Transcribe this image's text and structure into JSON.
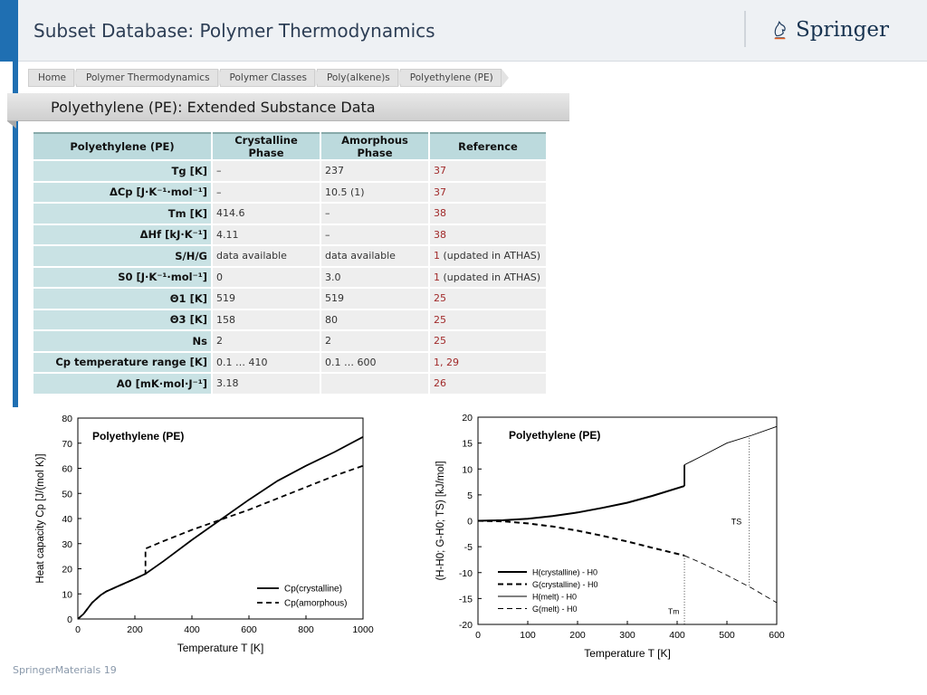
{
  "header": {
    "title": "Subset Database: Polymer Thermodynamics",
    "logo_text": "Springer",
    "logo_icon": "springer-horse-icon"
  },
  "breadcrumb": [
    "Home",
    "Polymer Thermodynamics",
    "Polymer Classes",
    "Poly(alkene)s",
    "Polyethylene (PE)"
  ],
  "panel_title": "Polyethylene (PE): Extended Substance Data",
  "table": {
    "headers": [
      "Polyethylene (PE)",
      "Crystalline Phase",
      "Amorphous Phase",
      "Reference"
    ],
    "rows": [
      {
        "label": "Tg [K]",
        "crystalline": "–",
        "amorphous": "237",
        "ref": "37",
        "ref_note": ""
      },
      {
        "label": "ΔCp [J·K⁻¹·mol⁻¹]",
        "crystalline": "–",
        "amorphous": "10.5 (1)",
        "ref": "37",
        "ref_note": ""
      },
      {
        "label": "Tm [K]",
        "crystalline": "414.6",
        "amorphous": "–",
        "ref": "38",
        "ref_note": ""
      },
      {
        "label": "ΔHf [kJ·K⁻¹]",
        "crystalline": "4.11",
        "amorphous": "–",
        "ref": "38",
        "ref_note": ""
      },
      {
        "label": "S/H/G",
        "crystalline": "data available",
        "amorphous": "data available",
        "ref": "1",
        "ref_note": " (updated in ATHAS)"
      },
      {
        "label": "S0 [J·K⁻¹·mol⁻¹]",
        "crystalline": "0",
        "amorphous": "3.0",
        "ref": "1",
        "ref_note": " (updated in ATHAS)"
      },
      {
        "label": "Θ1 [K]",
        "crystalline": "519",
        "amorphous": "519",
        "ref": "25",
        "ref_note": ""
      },
      {
        "label": "Θ3 [K]",
        "crystalline": "158",
        "amorphous": "80",
        "ref": "25",
        "ref_note": ""
      },
      {
        "label": "Ns",
        "crystalline": "2",
        "amorphous": "2",
        "ref": "25",
        "ref_note": ""
      },
      {
        "label": "Cp temperature range [K]",
        "crystalline": "0.1 … 410",
        "amorphous": "0.1 … 600",
        "ref": "1, 29",
        "ref_note": ""
      },
      {
        "label": "A0 [mK·mol·J⁻¹]",
        "crystalline": "3.18",
        "amorphous": "",
        "ref": "26",
        "ref_note": ""
      }
    ]
  },
  "chart_data": [
    {
      "type": "line",
      "title": "Polyethylene (PE)",
      "xlabel": "Temperature T [K]",
      "ylabel": "Heat capacity Cp [J/(mol K)]",
      "xlim": [
        0,
        1000
      ],
      "ylim": [
        0,
        80
      ],
      "xticks": [
        "0",
        "200",
        "400",
        "600",
        "800",
        "1000"
      ],
      "yticks": [
        "0",
        "10",
        "20",
        "30",
        "40",
        "50",
        "60",
        "70",
        "80"
      ],
      "legend_position": "bottom-right",
      "series": [
        {
          "name": "Cp(crystalline)",
          "style": "solid",
          "x": [
            0,
            20,
            50,
            80,
            100,
            150,
            200,
            237,
            300,
            400,
            500,
            600,
            700,
            800,
            900,
            1000
          ],
          "y": [
            0,
            2,
            6.5,
            9.5,
            11,
            13.5,
            16,
            18,
            23,
            31.5,
            39.5,
            47.5,
            55,
            61,
            66.5,
            72.5
          ]
        },
        {
          "name": "Cp(amorphous)",
          "style": "dashed",
          "x": [
            0,
            20,
            50,
            80,
            100,
            150,
            200,
            237,
            237,
            300,
            400,
            500,
            600,
            700,
            800,
            900,
            1000
          ],
          "y": [
            0,
            2,
            6.5,
            9.5,
            11,
            13.5,
            16,
            18,
            28,
            31,
            35.5,
            39.5,
            43.5,
            48,
            52.5,
            57,
            61
          ]
        }
      ]
    },
    {
      "type": "line",
      "title": "Polyethylene (PE)",
      "xlabel": "Temperature T [K]",
      "ylabel": "(H-H0; G-H0; TS) [kJ/mol]",
      "xlim": [
        0,
        600
      ],
      "ylim": [
        -20,
        20
      ],
      "xticks": [
        "0",
        "100",
        "200",
        "300",
        "400",
        "500",
        "600"
      ],
      "yticks": [
        "-20",
        "-15",
        "-10",
        "-5",
        "0",
        "5",
        "10",
        "15",
        "20"
      ],
      "legend_position": "bottom-left",
      "annotations": [
        "TS",
        "Tm"
      ],
      "series": [
        {
          "name": "H(crystalline) - H0",
          "style": "solid-thick",
          "x": [
            0,
            50,
            100,
            150,
            200,
            250,
            300,
            350,
            414.6
          ],
          "y": [
            0,
            0.1,
            0.4,
            0.9,
            1.6,
            2.5,
            3.5,
            4.8,
            6.7
          ]
        },
        {
          "name": "G(crystalline) - H0",
          "style": "dashed-thick",
          "x": [
            0,
            50,
            100,
            150,
            200,
            250,
            300,
            350,
            414.6
          ],
          "y": [
            0,
            -0.1,
            -0.5,
            -1.1,
            -1.9,
            -2.9,
            -4.0,
            -5.2,
            -6.7
          ]
        },
        {
          "name": "H(melt) - H0",
          "style": "solid-thin",
          "x": [
            414.6,
            450,
            500,
            550,
            600
          ],
          "y": [
            10.8,
            12.5,
            15,
            16.5,
            18.2
          ]
        },
        {
          "name": "G(melt) - H0",
          "style": "dashed-thin",
          "x": [
            414.6,
            450,
            500,
            550,
            600
          ],
          "y": [
            -6.7,
            -8.2,
            -10.5,
            -13,
            -15.8
          ]
        }
      ]
    }
  ],
  "footer": "SpringerMaterials 19"
}
